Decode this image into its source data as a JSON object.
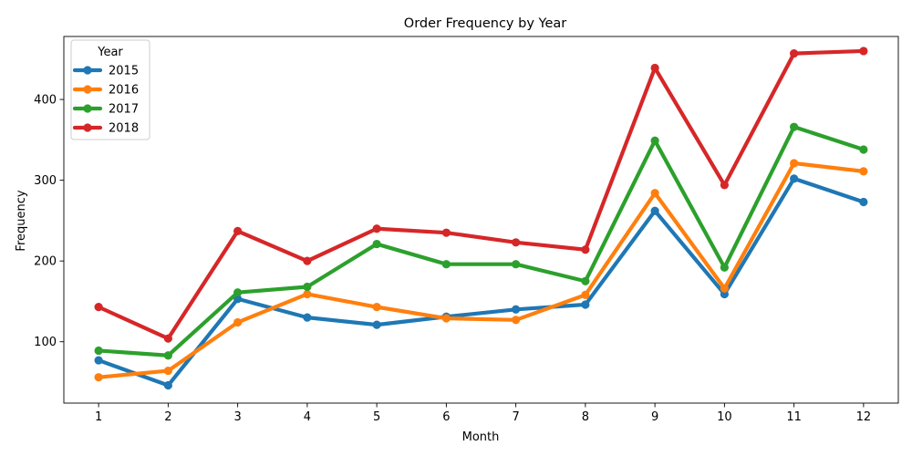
{
  "chart_data": {
    "type": "line",
    "title": "Order Frequency by Year",
    "xlabel": "Month",
    "ylabel": "Frequency",
    "x": [
      1,
      2,
      3,
      4,
      5,
      6,
      7,
      8,
      9,
      10,
      11,
      12
    ],
    "xlim": [
      0.5,
      12.5
    ],
    "ylim": [
      24,
      478
    ],
    "yticks": [
      100,
      200,
      300,
      400
    ],
    "grid": false,
    "legend": {
      "title": "Year",
      "placement": "top-left"
    },
    "series": [
      {
        "name": "2015",
        "color": "#1f77b4",
        "values": [
          77,
          46,
          153,
          130,
          121,
          131,
          140,
          146,
          262,
          159,
          302,
          273
        ]
      },
      {
        "name": "2016",
        "color": "#ff7f0e",
        "values": [
          56,
          64,
          124,
          159,
          143,
          129,
          127,
          158,
          284,
          166,
          321,
          311
        ]
      },
      {
        "name": "2017",
        "color": "#2ca02c",
        "values": [
          89,
          83,
          161,
          168,
          221,
          196,
          196,
          175,
          349,
          192,
          366,
          338
        ]
      },
      {
        "name": "2018",
        "color": "#d62728",
        "values": [
          143,
          104,
          237,
          200,
          240,
          235,
          223,
          214,
          439,
          294,
          457,
          460
        ]
      }
    ]
  }
}
